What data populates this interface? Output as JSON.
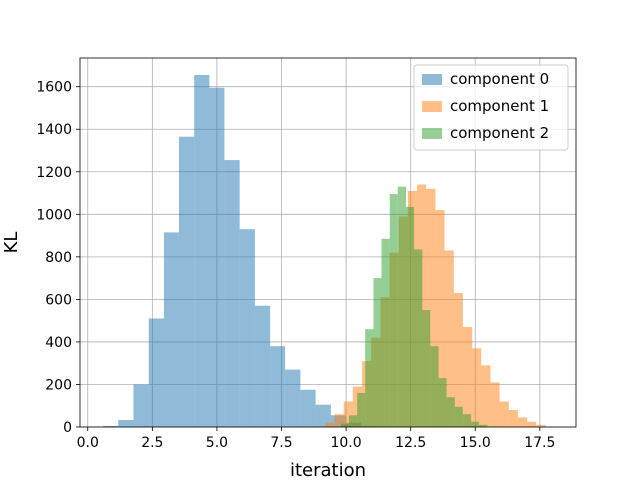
{
  "chart_data": {
    "type": "histogram",
    "xlabel": "iteration",
    "ylabel": "KL",
    "xlim": [
      -0.3,
      18.9
    ],
    "ylim": [
      0,
      1735
    ],
    "x_ticks": [
      0.0,
      2.5,
      5.0,
      7.5,
      10.0,
      12.5,
      15.0,
      17.5
    ],
    "x_tick_labels": [
      "0.0",
      "2.5",
      "5.0",
      "7.5",
      "10.0",
      "12.5",
      "15.0",
      "17.5"
    ],
    "y_ticks": [
      0,
      200,
      400,
      600,
      800,
      1000,
      1200,
      1400,
      1600
    ],
    "y_tick_labels": [
      "0",
      "200",
      "400",
      "600",
      "800",
      "1000",
      "1200",
      "1400",
      "1600"
    ],
    "grid": true,
    "legend_position": "top-right",
    "bar_alpha": 0.5,
    "series": [
      {
        "name": "component 0",
        "color": "#1f77b4",
        "bin_edges": [
          0.6,
          1.18,
          1.77,
          2.36,
          2.95,
          3.53,
          4.12,
          4.71,
          5.29,
          5.88,
          6.47,
          7.06,
          7.64,
          8.23,
          8.82,
          9.41,
          10.0,
          10.58,
          11.17,
          11.76
        ],
        "counts": [
          5,
          33,
          200,
          510,
          915,
          1365,
          1655,
          1595,
          1255,
          930,
          570,
          380,
          270,
          175,
          105,
          55,
          20,
          5,
          2
        ]
      },
      {
        "name": "component 1",
        "color": "#ff7f0e",
        "bin_edges": [
          9.2,
          9.55,
          9.91,
          10.26,
          10.62,
          10.97,
          11.33,
          11.68,
          12.04,
          12.39,
          12.75,
          13.1,
          13.46,
          13.81,
          14.17,
          14.52,
          14.88,
          15.23,
          15.59,
          15.94,
          16.3,
          16.65,
          17.01,
          17.36,
          17.72
        ],
        "counts": [
          20,
          60,
          120,
          190,
          310,
          420,
          610,
          820,
          990,
          1110,
          1140,
          1120,
          1020,
          830,
          630,
          470,
          370,
          290,
          210,
          120,
          80,
          45,
          25,
          10
        ]
      },
      {
        "name": "component 2",
        "color": "#2ca02c",
        "bin_edges": [
          9.8,
          10.11,
          10.43,
          10.74,
          11.06,
          11.37,
          11.69,
          12.0,
          12.32,
          12.63,
          12.95,
          13.26,
          13.58,
          13.89,
          14.21,
          14.52,
          14.84,
          15.15,
          15.47
        ],
        "counts": [
          15,
          55,
          160,
          460,
          700,
          885,
          1095,
          1130,
          1035,
          835,
          550,
          380,
          230,
          140,
          95,
          60,
          25,
          10
        ]
      }
    ]
  }
}
